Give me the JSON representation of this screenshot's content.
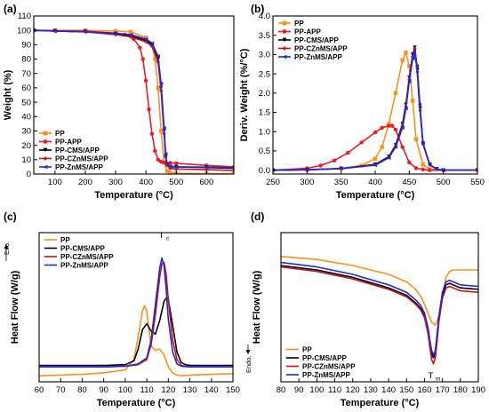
{
  "colors": {
    "PP": "#f7931e",
    "PP-APP": "#ee1c24",
    "PP-CMS/APP": "#000000",
    "PP-CZnMS/APP": "#c1121f",
    "PP-ZnMS/APP": "#1f2ad6"
  },
  "chart_data": [
    {
      "panel": "(a)",
      "type": "line",
      "xlabel": "Temperature (°C)",
      "ylabel": "Weight (%)",
      "xlim": [
        30,
        690
      ],
      "ylim": [
        0,
        110
      ],
      "xticks": [
        100,
        200,
        300,
        400,
        500,
        600
      ],
      "yticks": [
        0,
        10,
        20,
        30,
        40,
        50,
        60,
        70,
        80,
        90,
        100,
        110
      ],
      "legend_position": "bottom-left",
      "markers": true,
      "series": [
        {
          "name": "PP",
          "x": [
            30,
            100,
            200,
            300,
            350,
            400,
            420,
            430,
            440,
            450,
            460,
            470,
            480,
            500,
            600,
            690
          ],
          "y": [
            100,
            100,
            100,
            99.5,
            99,
            95,
            90,
            80,
            60,
            30,
            8,
            2,
            1,
            0.5,
            0.3,
            0.3
          ]
        },
        {
          "name": "PP-APP",
          "x": [
            30,
            100,
            200,
            300,
            330,
            360,
            380,
            390,
            400,
            410,
            420,
            430,
            440,
            450,
            460,
            480,
            500,
            600,
            690
          ],
          "y": [
            100,
            99.8,
            99.5,
            98,
            97,
            94,
            88,
            80,
            65,
            45,
            28,
            16,
            10,
            8.5,
            8,
            7.8,
            7.5,
            6,
            5
          ]
        },
        {
          "name": "PP-CMS/APP",
          "x": [
            30,
            100,
            200,
            300,
            350,
            400,
            420,
            440,
            450,
            460,
            465,
            470,
            480,
            500,
            600,
            690
          ],
          "y": [
            100,
            99.5,
            99,
            97.5,
            96,
            93,
            90,
            80,
            60,
            30,
            12,
            6,
            5,
            5,
            4.5,
            4
          ]
        },
        {
          "name": "PP-CZnMS/APP",
          "x": [
            30,
            100,
            200,
            300,
            350,
            400,
            420,
            440,
            450,
            460,
            465,
            470,
            480,
            500,
            600,
            690
          ],
          "y": [
            100,
            99.5,
            99,
            97,
            95.5,
            92,
            89,
            78,
            58,
            28,
            12,
            6,
            4,
            3.5,
            3,
            2.5
          ]
        },
        {
          "name": "PP-ZnMS/APP",
          "x": [
            30,
            100,
            200,
            300,
            350,
            400,
            420,
            440,
            450,
            460,
            465,
            470,
            480,
            500,
            600,
            690
          ],
          "y": [
            100,
            99.5,
            99,
            98,
            97,
            94,
            91,
            82,
            63,
            32,
            14,
            7,
            5.5,
            5,
            4.8,
            4.5
          ]
        }
      ]
    },
    {
      "panel": "(b)",
      "type": "line",
      "xlabel": "Temperature (°C)",
      "ylabel": "Deriv. Weight (%/°C)",
      "xlim": [
        250,
        550
      ],
      "ylim": [
        -0.1,
        4.0
      ],
      "xticks": [
        250,
        300,
        350,
        400,
        450,
        500,
        550
      ],
      "yticks": [
        0.0,
        0.5,
        1.0,
        1.5,
        2.0,
        2.5,
        3.0,
        3.5,
        4.0
      ],
      "legend_position": "top-left",
      "markers": true,
      "series": [
        {
          "name": "PP",
          "x": [
            250,
            300,
            350,
            380,
            400,
            410,
            420,
            430,
            440,
            445,
            450,
            455,
            460,
            470,
            480,
            500,
            550
          ],
          "y": [
            0,
            0.01,
            0.05,
            0.12,
            0.3,
            0.6,
            1.2,
            2.0,
            2.85,
            3.05,
            2.7,
            1.8,
            0.8,
            0.15,
            0.03,
            0,
            0
          ]
        },
        {
          "name": "PP-APP",
          "x": [
            250,
            300,
            320,
            340,
            360,
            380,
            400,
            410,
            420,
            425,
            430,
            440,
            450,
            460,
            470,
            480,
            500,
            550
          ],
          "y": [
            0,
            0.05,
            0.12,
            0.25,
            0.45,
            0.72,
            0.98,
            1.1,
            1.15,
            1.15,
            1.05,
            0.6,
            0.2,
            0.05,
            0.02,
            0,
            0,
            0
          ]
        },
        {
          "name": "PP-CMS/APP",
          "x": [
            250,
            300,
            350,
            400,
            420,
            430,
            440,
            445,
            450,
            455,
            458,
            462,
            466,
            470,
            480,
            490,
            500,
            550
          ],
          "y": [
            0,
            0.01,
            0.04,
            0.15,
            0.35,
            0.65,
            1.2,
            1.7,
            2.4,
            3.0,
            3.18,
            2.6,
            1.6,
            0.7,
            0.15,
            0.03,
            0,
            0
          ]
        },
        {
          "name": "PP-CZnMS/APP",
          "x": [
            250,
            300,
            350,
            400,
            420,
            430,
            440,
            445,
            450,
            455,
            458,
            462,
            466,
            470,
            480,
            490,
            500,
            550
          ],
          "y": [
            0,
            0.01,
            0.04,
            0.14,
            0.33,
            0.62,
            1.15,
            1.65,
            2.35,
            2.95,
            3.15,
            2.55,
            1.55,
            0.68,
            0.14,
            0.03,
            0,
            0
          ]
        },
        {
          "name": "PP-ZnMS/APP",
          "x": [
            250,
            300,
            350,
            400,
            420,
            430,
            440,
            445,
            450,
            455,
            457,
            461,
            465,
            470,
            480,
            490,
            500,
            550
          ],
          "y": [
            0,
            0.01,
            0.04,
            0.13,
            0.32,
            0.6,
            1.1,
            1.6,
            2.3,
            2.9,
            3.08,
            2.7,
            1.7,
            0.7,
            0.14,
            0.03,
            0,
            0
          ]
        }
      ]
    },
    {
      "panel": "(c)",
      "type": "line",
      "xlabel": "Temperature (°C)",
      "ylabel": "Heat Flow (W/g)",
      "axis_note": "Exo.",
      "annotation": {
        "text": "T",
        "sub": "c",
        "x": 118
      },
      "xlim": [
        60,
        150
      ],
      "ylim": [
        0,
        10
      ],
      "xticks": [
        60,
        70,
        80,
        90,
        100,
        110,
        120,
        130,
        140,
        150
      ],
      "show_yticks": false,
      "legend_position": "top-left",
      "markers": false,
      "series": [
        {
          "name": "PP",
          "x": [
            60,
            70,
            80,
            90,
            100,
            104,
            106,
            108,
            109,
            110,
            111,
            112,
            114,
            116,
            118,
            120,
            122,
            124,
            126,
            130,
            140,
            150
          ],
          "y": [
            0.4,
            0.45,
            0.5,
            0.6,
            0.8,
            1.5,
            3.0,
            4.8,
            5.1,
            4.7,
            3.5,
            2.4,
            2.1,
            2.2,
            1.8,
            1.0,
            0.6,
            0.45,
            0.4,
            0.45,
            0.5,
            0.55
          ]
        },
        {
          "name": "PP-CMS/APP",
          "x": [
            60,
            70,
            80,
            90,
            100,
            104,
            106,
            108,
            110,
            112,
            114,
            116,
            118,
            119,
            120,
            122,
            124,
            126,
            128,
            130,
            140,
            150
          ],
          "y": [
            1.1,
            1.1,
            1.1,
            1.1,
            1.15,
            1.4,
            2.2,
            3.5,
            3.9,
            3.4,
            3.2,
            4.1,
            5.4,
            5.6,
            5.5,
            3.8,
            2.0,
            1.3,
            1.15,
            1.1,
            1.1,
            1.1
          ]
        },
        {
          "name": "PP-CZnMS/APP",
          "x": [
            60,
            70,
            80,
            90,
            100,
            106,
            110,
            112,
            114,
            116,
            117,
            118,
            119,
            120,
            122,
            124,
            126,
            130,
            140,
            150
          ],
          "y": [
            1.0,
            1.0,
            1.0,
            1.0,
            1.05,
            1.15,
            1.5,
            2.5,
            4.5,
            7.0,
            7.9,
            8.0,
            7.2,
            5.5,
            2.8,
            1.5,
            1.1,
            1.0,
            1.0,
            1.0
          ]
        },
        {
          "name": "PP-ZnMS/APP",
          "x": [
            60,
            70,
            80,
            90,
            100,
            106,
            110,
            112,
            114,
            116,
            117,
            118,
            119,
            120,
            122,
            124,
            126,
            130,
            140,
            150
          ],
          "y": [
            1.0,
            1.0,
            1.0,
            1.0,
            1.05,
            1.2,
            1.6,
            2.8,
            5.2,
            7.6,
            8.3,
            7.8,
            6.2,
            4.2,
            2.0,
            1.2,
            1.05,
            1.0,
            1.0,
            1.0
          ]
        }
      ]
    },
    {
      "panel": "(d)",
      "type": "line",
      "xlabel": "Temperature (°C)",
      "ylabel": "Heat Flow (W/g)",
      "axis_note": "Endo.",
      "annotation": {
        "text": "T",
        "sub": "m",
        "x": 165
      },
      "xlim": [
        80,
        190
      ],
      "ylim": [
        0,
        10
      ],
      "xticks": [
        80,
        90,
        100,
        110,
        120,
        130,
        140,
        150,
        160,
        170,
        180,
        190
      ],
      "show_yticks": false,
      "legend_position": "bottom-left",
      "markers": false,
      "series": [
        {
          "name": "PP",
          "x": [
            80,
            100,
            120,
            140,
            150,
            155,
            158,
            160,
            162,
            164,
            166,
            168,
            170,
            172,
            174,
            176,
            180,
            190
          ],
          "y": [
            8.4,
            8.2,
            7.8,
            7.2,
            6.7,
            6.2,
            5.7,
            5.2,
            4.6,
            4.0,
            3.8,
            4.4,
            5.8,
            7.0,
            7.4,
            7.5,
            7.5,
            7.5
          ]
        },
        {
          "name": "PP-CMS/APP",
          "x": [
            80,
            100,
            120,
            140,
            150,
            155,
            158,
            160,
            162,
            163,
            164,
            165,
            166,
            167,
            168,
            170,
            172,
            174,
            176,
            180,
            190
          ],
          "y": [
            7.8,
            7.5,
            7.0,
            6.3,
            5.8,
            5.3,
            4.9,
            4.4,
            3.4,
            2.6,
            1.9,
            1.6,
            1.9,
            3.0,
            4.2,
            5.8,
            6.5,
            6.6,
            6.5,
            6.3,
            6.2
          ]
        },
        {
          "name": "PP-CZnMS/APP",
          "x": [
            80,
            100,
            120,
            140,
            150,
            155,
            158,
            160,
            162,
            163,
            164,
            165,
            166,
            167,
            168,
            170,
            172,
            174,
            176,
            180,
            190
          ],
          "y": [
            7.7,
            7.4,
            6.9,
            6.2,
            5.7,
            5.2,
            4.8,
            4.3,
            3.2,
            2.3,
            1.5,
            1.2,
            1.6,
            2.7,
            4.0,
            5.6,
            6.3,
            6.4,
            6.3,
            6.1,
            6.0
          ]
        },
        {
          "name": "PP-ZnMS/APP",
          "x": [
            80,
            100,
            120,
            140,
            150,
            155,
            158,
            160,
            162,
            163,
            164,
            165,
            166,
            167,
            168,
            170,
            172,
            174,
            176,
            180,
            190
          ],
          "y": [
            8.0,
            7.7,
            7.2,
            6.5,
            6.0,
            5.5,
            5.1,
            4.6,
            3.6,
            2.8,
            2.1,
            1.8,
            2.1,
            3.2,
            4.4,
            6.0,
            6.7,
            6.8,
            6.7,
            6.5,
            6.4
          ]
        }
      ]
    }
  ]
}
